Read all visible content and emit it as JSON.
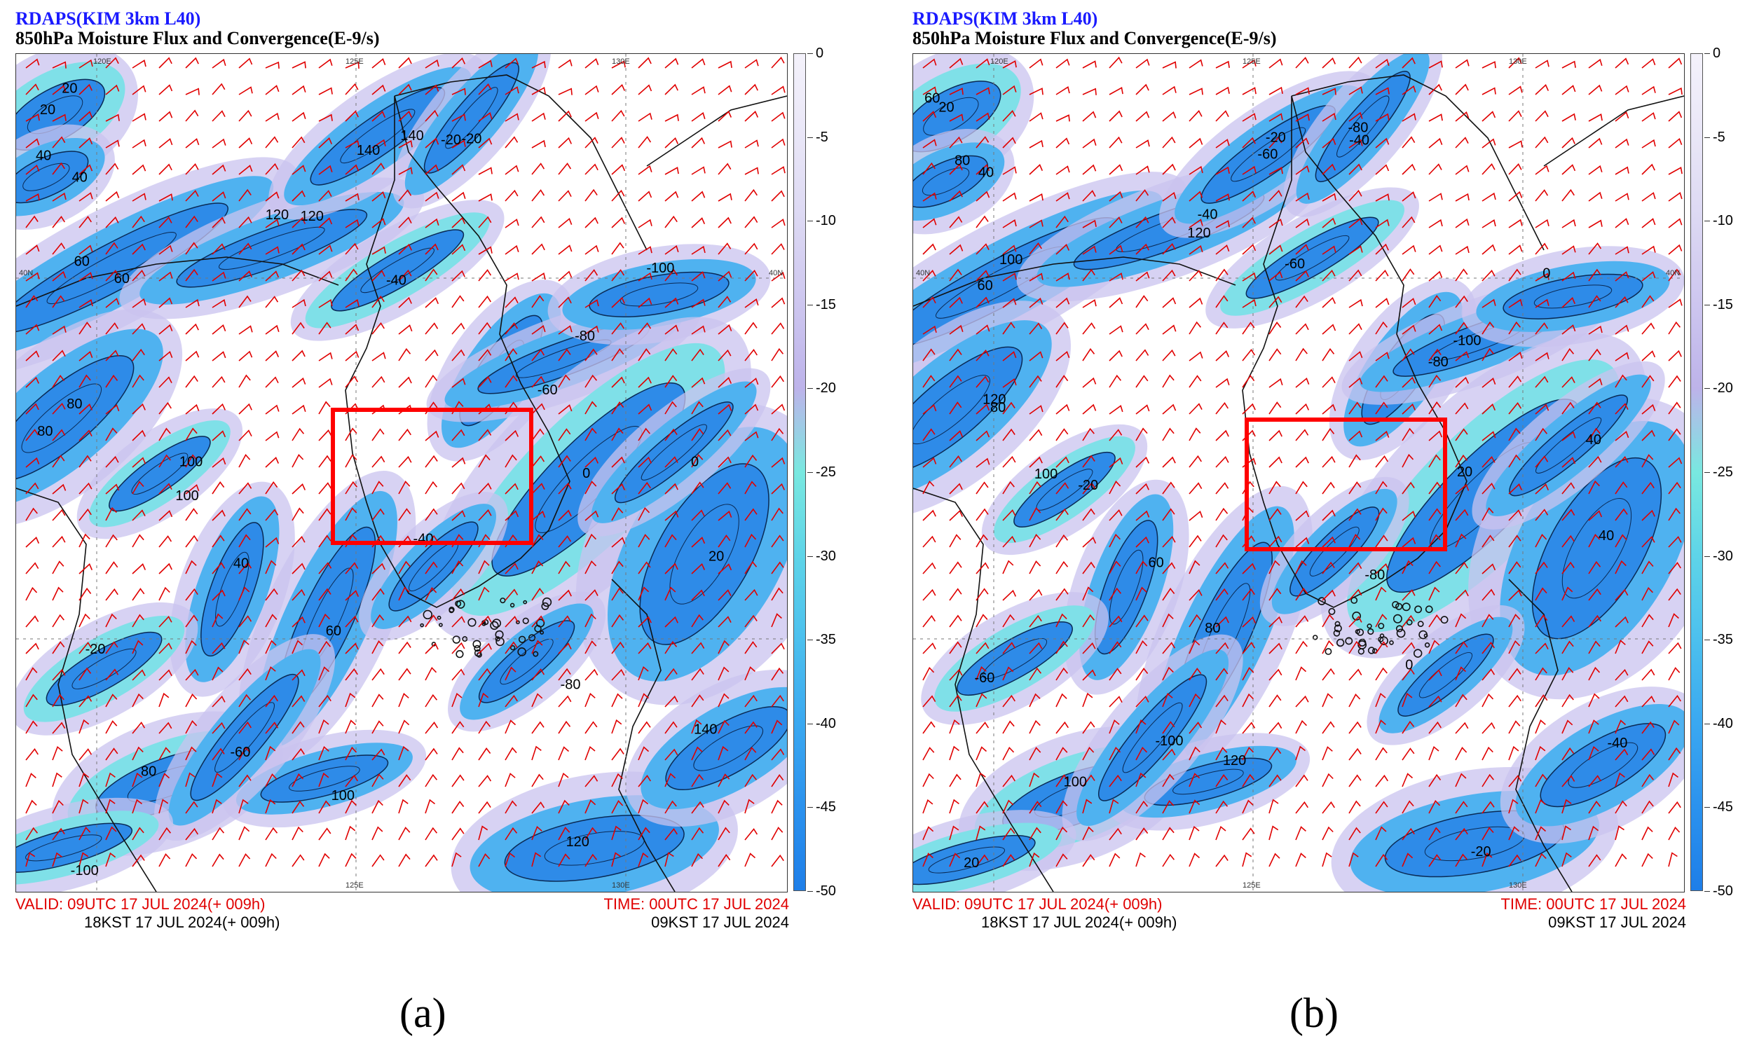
{
  "panels": [
    {
      "id": "a",
      "caption": "(a)",
      "model_title": "RDAPS(KIM 3km L40)",
      "field_title": "850hPa Moisture Flux and Convergence(E-9/s)",
      "valid_utc": "VALID:  09UTC 17 JUL 2024(+ 009h)",
      "valid_kst": "18KST 17 JUL 2024(+ 009h)",
      "init_utc": "TIME: 00UTC 17 JUL 2024",
      "init_kst": "09KST 17 JUL 2024",
      "lon_labels": [
        "120E",
        "125E",
        "130E",
        "125E",
        "130E"
      ],
      "lat_labels": [
        "40N",
        "40N"
      ],
      "contour_labels": [
        "20",
        "40",
        "60",
        "80",
        "100",
        "120",
        "140",
        "-20",
        "-40",
        "-60",
        "-80",
        "-100",
        "0"
      ],
      "box_color": "#ff0000"
    },
    {
      "id": "b",
      "caption": "(b)",
      "model_title": "RDAPS(KIM 3km L40)",
      "field_title": "850hPa Moisture Flux and Convergence(E-9/s)",
      "valid_utc": "VALID:  09UTC 17 JUL 2024(+ 009h)",
      "valid_kst": "18KST 17 JUL 2024(+ 009h)",
      "init_utc": "TIME: 00UTC 17 JUL 2024",
      "init_kst": "09KST 17 JUL 2024",
      "lon_labels": [
        "120E",
        "125E",
        "130E",
        "125E",
        "130E"
      ],
      "lat_labels": [
        "40N",
        "40N"
      ],
      "contour_labels": [
        "20",
        "40",
        "60",
        "80",
        "100",
        "120",
        "-20",
        "-40",
        "-60",
        "-80",
        "-100",
        "0"
      ],
      "box_color": "#ff0000"
    }
  ],
  "colorbar": {
    "labels": [
      "0",
      "-5",
      "-10",
      "-15",
      "-20",
      "-25",
      "-30",
      "-35",
      "-40",
      "-45",
      "-50"
    ],
    "colors": [
      "#f4f2fb",
      "#e9e6f7",
      "#dcd8f3",
      "#cdc6ef",
      "#bdb3ea",
      "#79e8e0",
      "#5ed4e8",
      "#4cc0ee",
      "#3aa8f0",
      "#2b92ee",
      "#1e7ee8"
    ]
  },
  "colors": {
    "fill_strong": "#2e8be8",
    "fill_mid": "#4fb2f0",
    "fill_cyan": "#7fe0e8",
    "fill_light": "#c9c3ef",
    "wind_barb": "#e00000",
    "coastline": "#111111",
    "title_blue": "#1a1aff",
    "footer_red": "#e00000"
  }
}
